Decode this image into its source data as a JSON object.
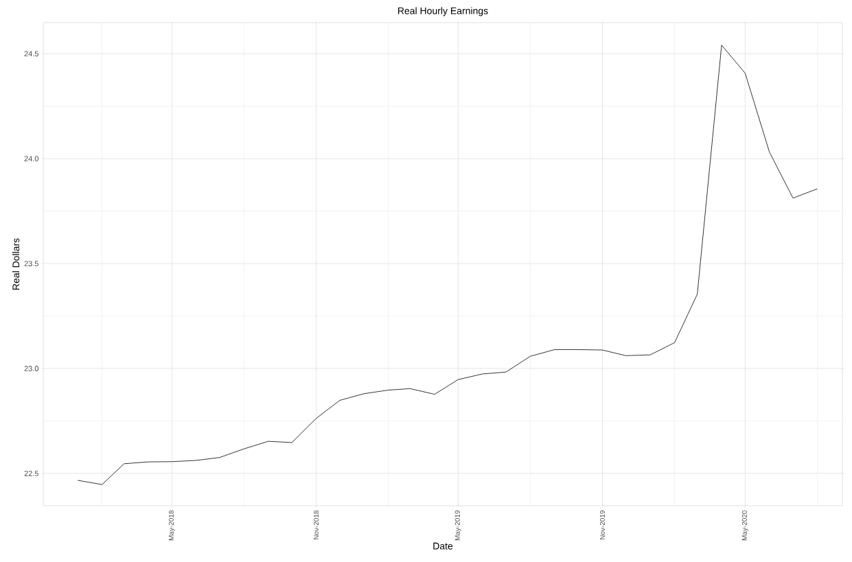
{
  "chart_data": {
    "type": "line",
    "title": "Real Hourly Earnings",
    "xlabel": "Date",
    "ylabel": "Real Dollars",
    "color": "#000000",
    "grid": true,
    "x": [
      "2018-01",
      "2018-02",
      "2018-03",
      "2018-04",
      "2018-05",
      "2018-06",
      "2018-07",
      "2018-08",
      "2018-09",
      "2018-10",
      "2018-11",
      "2018-12",
      "2019-01",
      "2019-02",
      "2019-03",
      "2019-04",
      "2019-05",
      "2019-06",
      "2019-07",
      "2019-08",
      "2019-09",
      "2019-10",
      "2019-11",
      "2019-12",
      "2020-01",
      "2020-02",
      "2020-03",
      "2020-04",
      "2020-05",
      "2020-06",
      "2020-07",
      "2020-08"
    ],
    "values": [
      22.467,
      22.447,
      22.546,
      22.555,
      22.556,
      22.562,
      22.576,
      22.617,
      22.653,
      22.647,
      22.762,
      22.848,
      22.88,
      22.897,
      22.904,
      22.877,
      22.947,
      22.974,
      22.983,
      23.058,
      23.09,
      23.09,
      23.088,
      23.061,
      23.065,
      23.123,
      23.354,
      24.541,
      24.407,
      24.031,
      23.812,
      23.856
    ],
    "xlim": [
      "2017-11-18",
      "2020-09-02"
    ],
    "xticks": [
      {
        "value": "2018-02",
        "label": null
      },
      {
        "value": "2018-05",
        "label": "May-2018"
      },
      {
        "value": "2018-08",
        "label": null
      },
      {
        "value": "2018-11",
        "label": "Nov-2018"
      },
      {
        "value": "2019-02",
        "label": null
      },
      {
        "value": "2019-05",
        "label": "May-2019"
      },
      {
        "value": "2019-08",
        "label": null
      },
      {
        "value": "2019-11",
        "label": "Nov-2019"
      },
      {
        "value": "2020-02",
        "label": null
      },
      {
        "value": "2020-05",
        "label": "May-2020"
      },
      {
        "value": "2020-08",
        "label": null
      }
    ],
    "ylim": [
      22.346,
      24.648
    ],
    "yticks": [
      {
        "value": 22.5,
        "label": "22.5"
      },
      {
        "value": 22.75,
        "label": null
      },
      {
        "value": 23,
        "label": "23.0"
      },
      {
        "value": 23.25,
        "label": null
      },
      {
        "value": 23.5,
        "label": "23.5"
      },
      {
        "value": 23.75,
        "label": null
      },
      {
        "value": 24,
        "label": "24.0"
      },
      {
        "value": 24.25,
        "label": null
      },
      {
        "value": 24.5,
        "label": "24.5"
      }
    ]
  }
}
